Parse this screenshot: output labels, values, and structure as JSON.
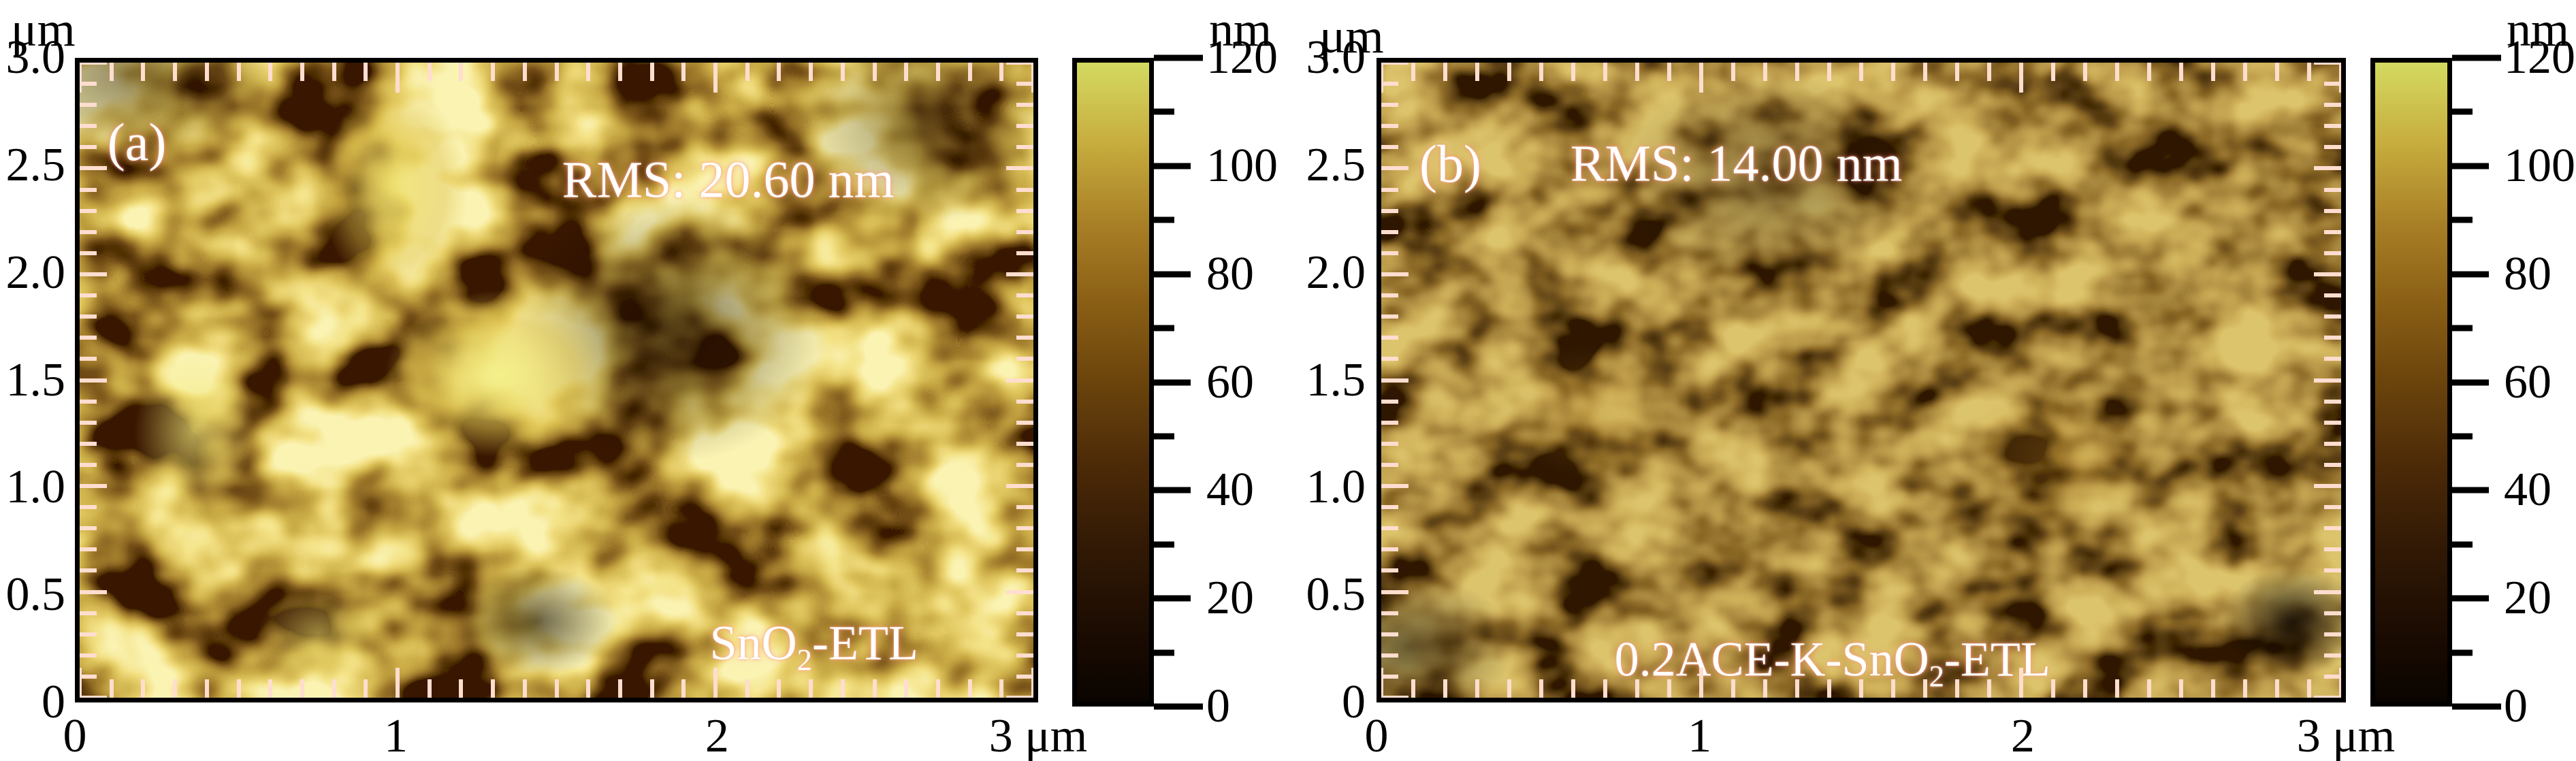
{
  "chart_data": [
    {
      "type": "heatmap",
      "panel": "(a)",
      "description": "AFM surface topography image",
      "annotation_rms": "RMS: 20.60 nm",
      "sample": "SnO2-ETL",
      "x_unit": "μm",
      "y_unit": "μm",
      "x_range": [
        0,
        3
      ],
      "y_range": [
        0,
        3
      ],
      "x_ticks": [
        0,
        1,
        2,
        3
      ],
      "y_ticks": [
        0,
        0.5,
        1.0,
        1.5,
        2.0,
        2.5,
        3.0
      ],
      "colorbar": {
        "unit": "nm",
        "range": [
          0,
          120
        ],
        "ticks": [
          0,
          20,
          40,
          60,
          80,
          100,
          120
        ]
      }
    },
    {
      "type": "heatmap",
      "panel": "(b)",
      "description": "AFM surface topography image",
      "annotation_rms": "RMS: 14.00 nm",
      "sample": "0.2ACE-K-SnO2-ETL",
      "x_unit": "μm",
      "y_unit": "μm",
      "x_range": [
        0,
        3
      ],
      "y_range": [
        0,
        3
      ],
      "x_ticks": [
        0,
        1,
        2,
        3
      ],
      "y_ticks": [
        0,
        0.5,
        1.0,
        1.5,
        2.0,
        2.5,
        3.0
      ],
      "colorbar": {
        "unit": "nm",
        "range": [
          0,
          120
        ],
        "ticks": [
          0,
          20,
          40,
          60,
          80,
          100,
          120
        ]
      }
    }
  ],
  "panels": [
    {
      "tag": "(a)",
      "rms": "RMS: 20.60 nm",
      "sample_parts": [
        {
          "t": "SnO"
        },
        {
          "t": "2",
          "sub": true
        },
        {
          "t": "-ETL"
        }
      ],
      "y_unit": "μm",
      "y_tick_labels": [
        "3.0",
        "2.5",
        "2.0",
        "1.5",
        "1.0",
        "0.5",
        "0"
      ],
      "x_tick_labels": [
        "0",
        "1",
        "2",
        "3 μm"
      ]
    },
    {
      "tag": "(b)",
      "rms": "RMS: 14.00 nm",
      "sample_parts": [
        {
          "t": "0.2ACE-K-SnO"
        },
        {
          "t": "2",
          "sub": true
        },
        {
          "t": "-ETL"
        }
      ],
      "y_unit": "μm",
      "y_tick_labels": [
        "3.0",
        "2.5",
        "2.0",
        "1.5",
        "1.0",
        "0.5",
        "0"
      ],
      "x_tick_labels": [
        "0",
        "1",
        "2",
        "3 μm"
      ]
    }
  ],
  "colorbar": {
    "unit": "nm",
    "tick_labels": [
      "120",
      "100",
      "80",
      "60",
      "40",
      "20",
      "0"
    ],
    "gradient_stops": [
      "#0a0400",
      "#1e0d02",
      "#331a05",
      "#4d2b08",
      "#6b440c",
      "#8a5f15",
      "#a98026",
      "#c7ad3e",
      "#d4da60"
    ]
  },
  "colors": {
    "tick_mark": "#ffddcf",
    "frame": "#000000",
    "annotation_text": "#ffffff",
    "background": "#ffffff"
  }
}
